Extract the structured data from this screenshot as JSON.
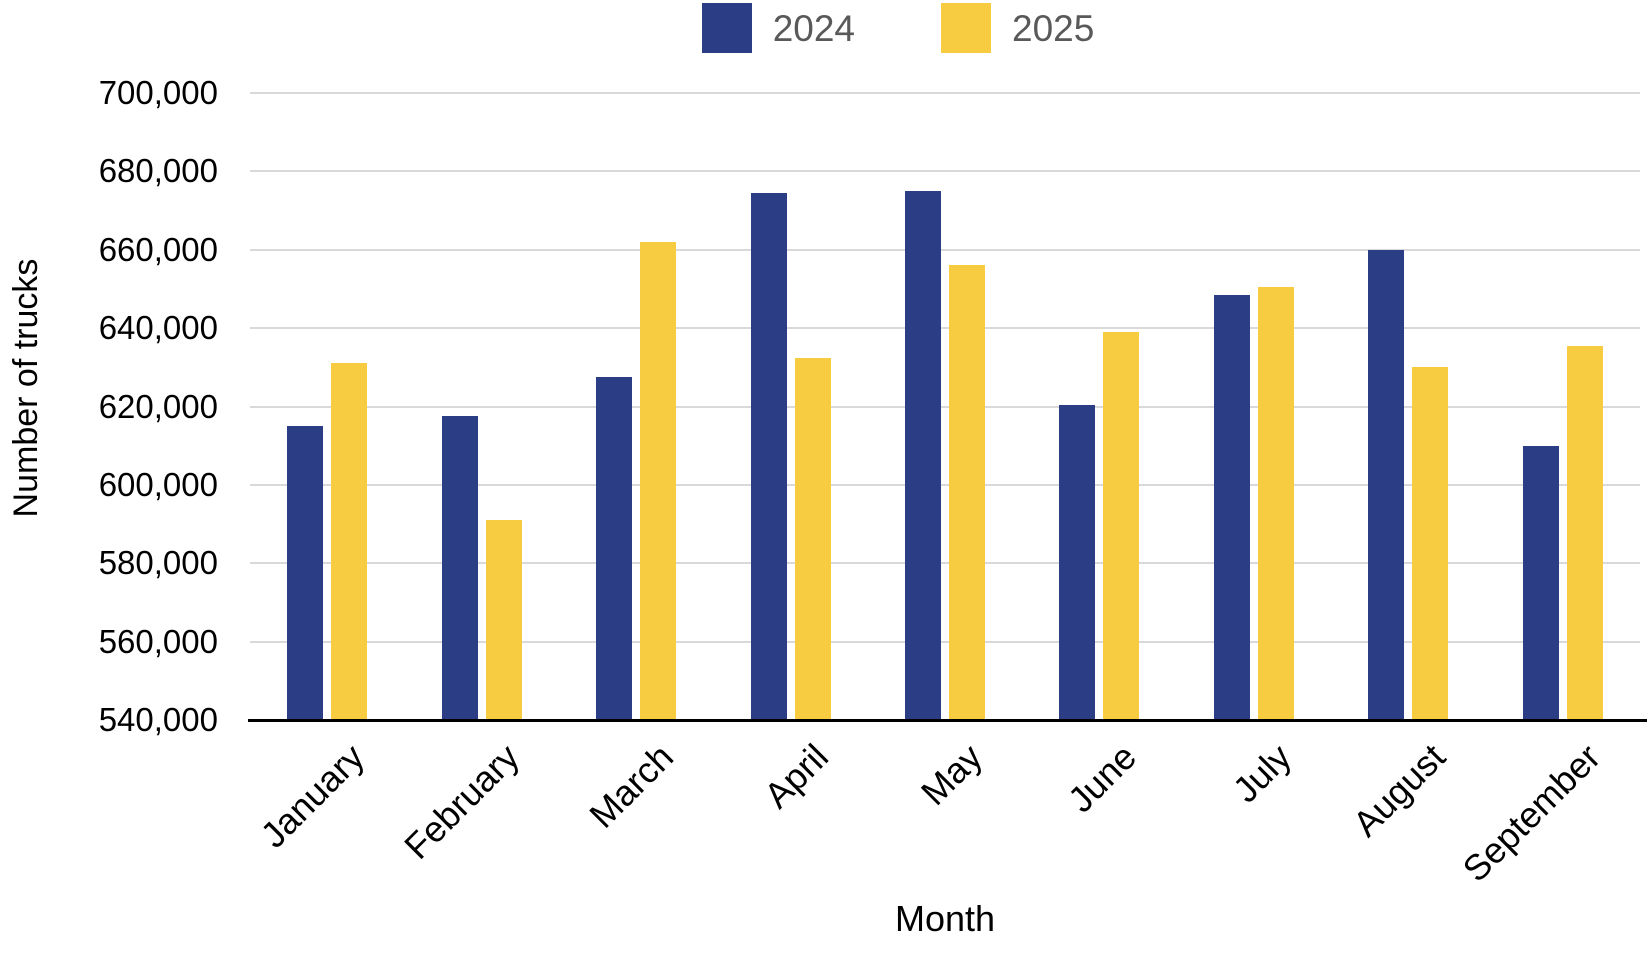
{
  "chart_data": {
    "type": "bar",
    "title": "",
    "xlabel": "Month",
    "ylabel": "Number of trucks",
    "categories": [
      "January",
      "February",
      "March",
      "April",
      "May",
      "June",
      "July",
      "August",
      "September"
    ],
    "series": [
      {
        "name": "2024",
        "color": "#2B3E85",
        "values": [
          615000,
          617500,
          627500,
          674500,
          675000,
          620500,
          648500,
          660000,
          610000
        ]
      },
      {
        "name": "2025",
        "color": "#F8CC40",
        "values": [
          631000,
          591000,
          662000,
          632500,
          656000,
          639000,
          650500,
          630000,
          635500
        ]
      }
    ],
    "ylim": [
      540000,
      700000
    ],
    "ytick_step": 20000,
    "ytick_labels": [
      "700,000",
      "680,000",
      "660,000",
      "640,000",
      "620,000",
      "600,000",
      "580,000",
      "560,000",
      "540,000"
    ],
    "grid": "horizontal",
    "legend_position": "top-center",
    "colors": {
      "gridline": "#D9D9D9",
      "axis_line": "#000000",
      "legend_text": "#595959",
      "tick_text": "#000000"
    }
  }
}
